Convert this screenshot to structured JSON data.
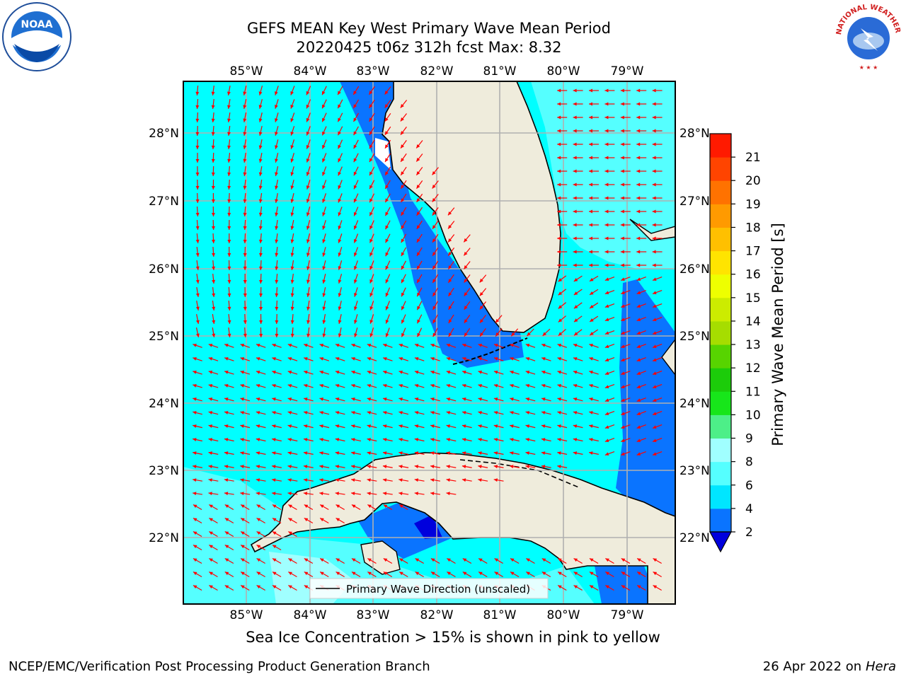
{
  "title": {
    "line1": "GEFS MEAN Key West Primary Wave Mean Period",
    "line2": "20220425 t06z 312h fcst   Max: 8.32"
  },
  "logos": {
    "left": "noaa-logo",
    "left_text": "NOAA",
    "right": "nws-logo",
    "right_text": "NATIONAL WEATHER SERVICE"
  },
  "map": {
    "region": "Key West / South Florida",
    "lon_labels": [
      "85°W",
      "84°W",
      "83°W",
      "82°W",
      "81°W",
      "80°W",
      "79°W"
    ],
    "lat_labels": [
      "28°N",
      "27°N",
      "26°N",
      "25°N",
      "24°N",
      "23°N",
      "22°N"
    ],
    "vector_color": "#ff0000",
    "land_color": "#efecdc",
    "legend_label": "Primary Wave Direction (unscaled)"
  },
  "colorbar": {
    "label": "Primary Wave Mean Period [s]",
    "ticks": [
      "2",
      "4",
      "6",
      "8",
      "9",
      "10",
      "11",
      "12",
      "13",
      "14",
      "15",
      "16",
      "17",
      "18",
      "19",
      "20",
      "21"
    ],
    "colors": [
      "#0a74ff",
      "#00e6ff",
      "#55ffff",
      "#a0ffff",
      "#4def88",
      "#17e61a",
      "#1ccc0a",
      "#57d400",
      "#a6dd00",
      "#ccec00",
      "#eeff00",
      "#ffe400",
      "#ffc000",
      "#ff9a00",
      "#ff7200",
      "#ff4400",
      "#ff1a00"
    ],
    "extend_color": "#0000dd"
  },
  "subtitle": "Sea Ice Concentration > 15% is shown in pink to yellow",
  "footer": {
    "left": "NCEP/EMC/Verification Post Processing Product Generation Branch",
    "right_date": "26 Apr 2022 on ",
    "right_machine": "Hera"
  }
}
